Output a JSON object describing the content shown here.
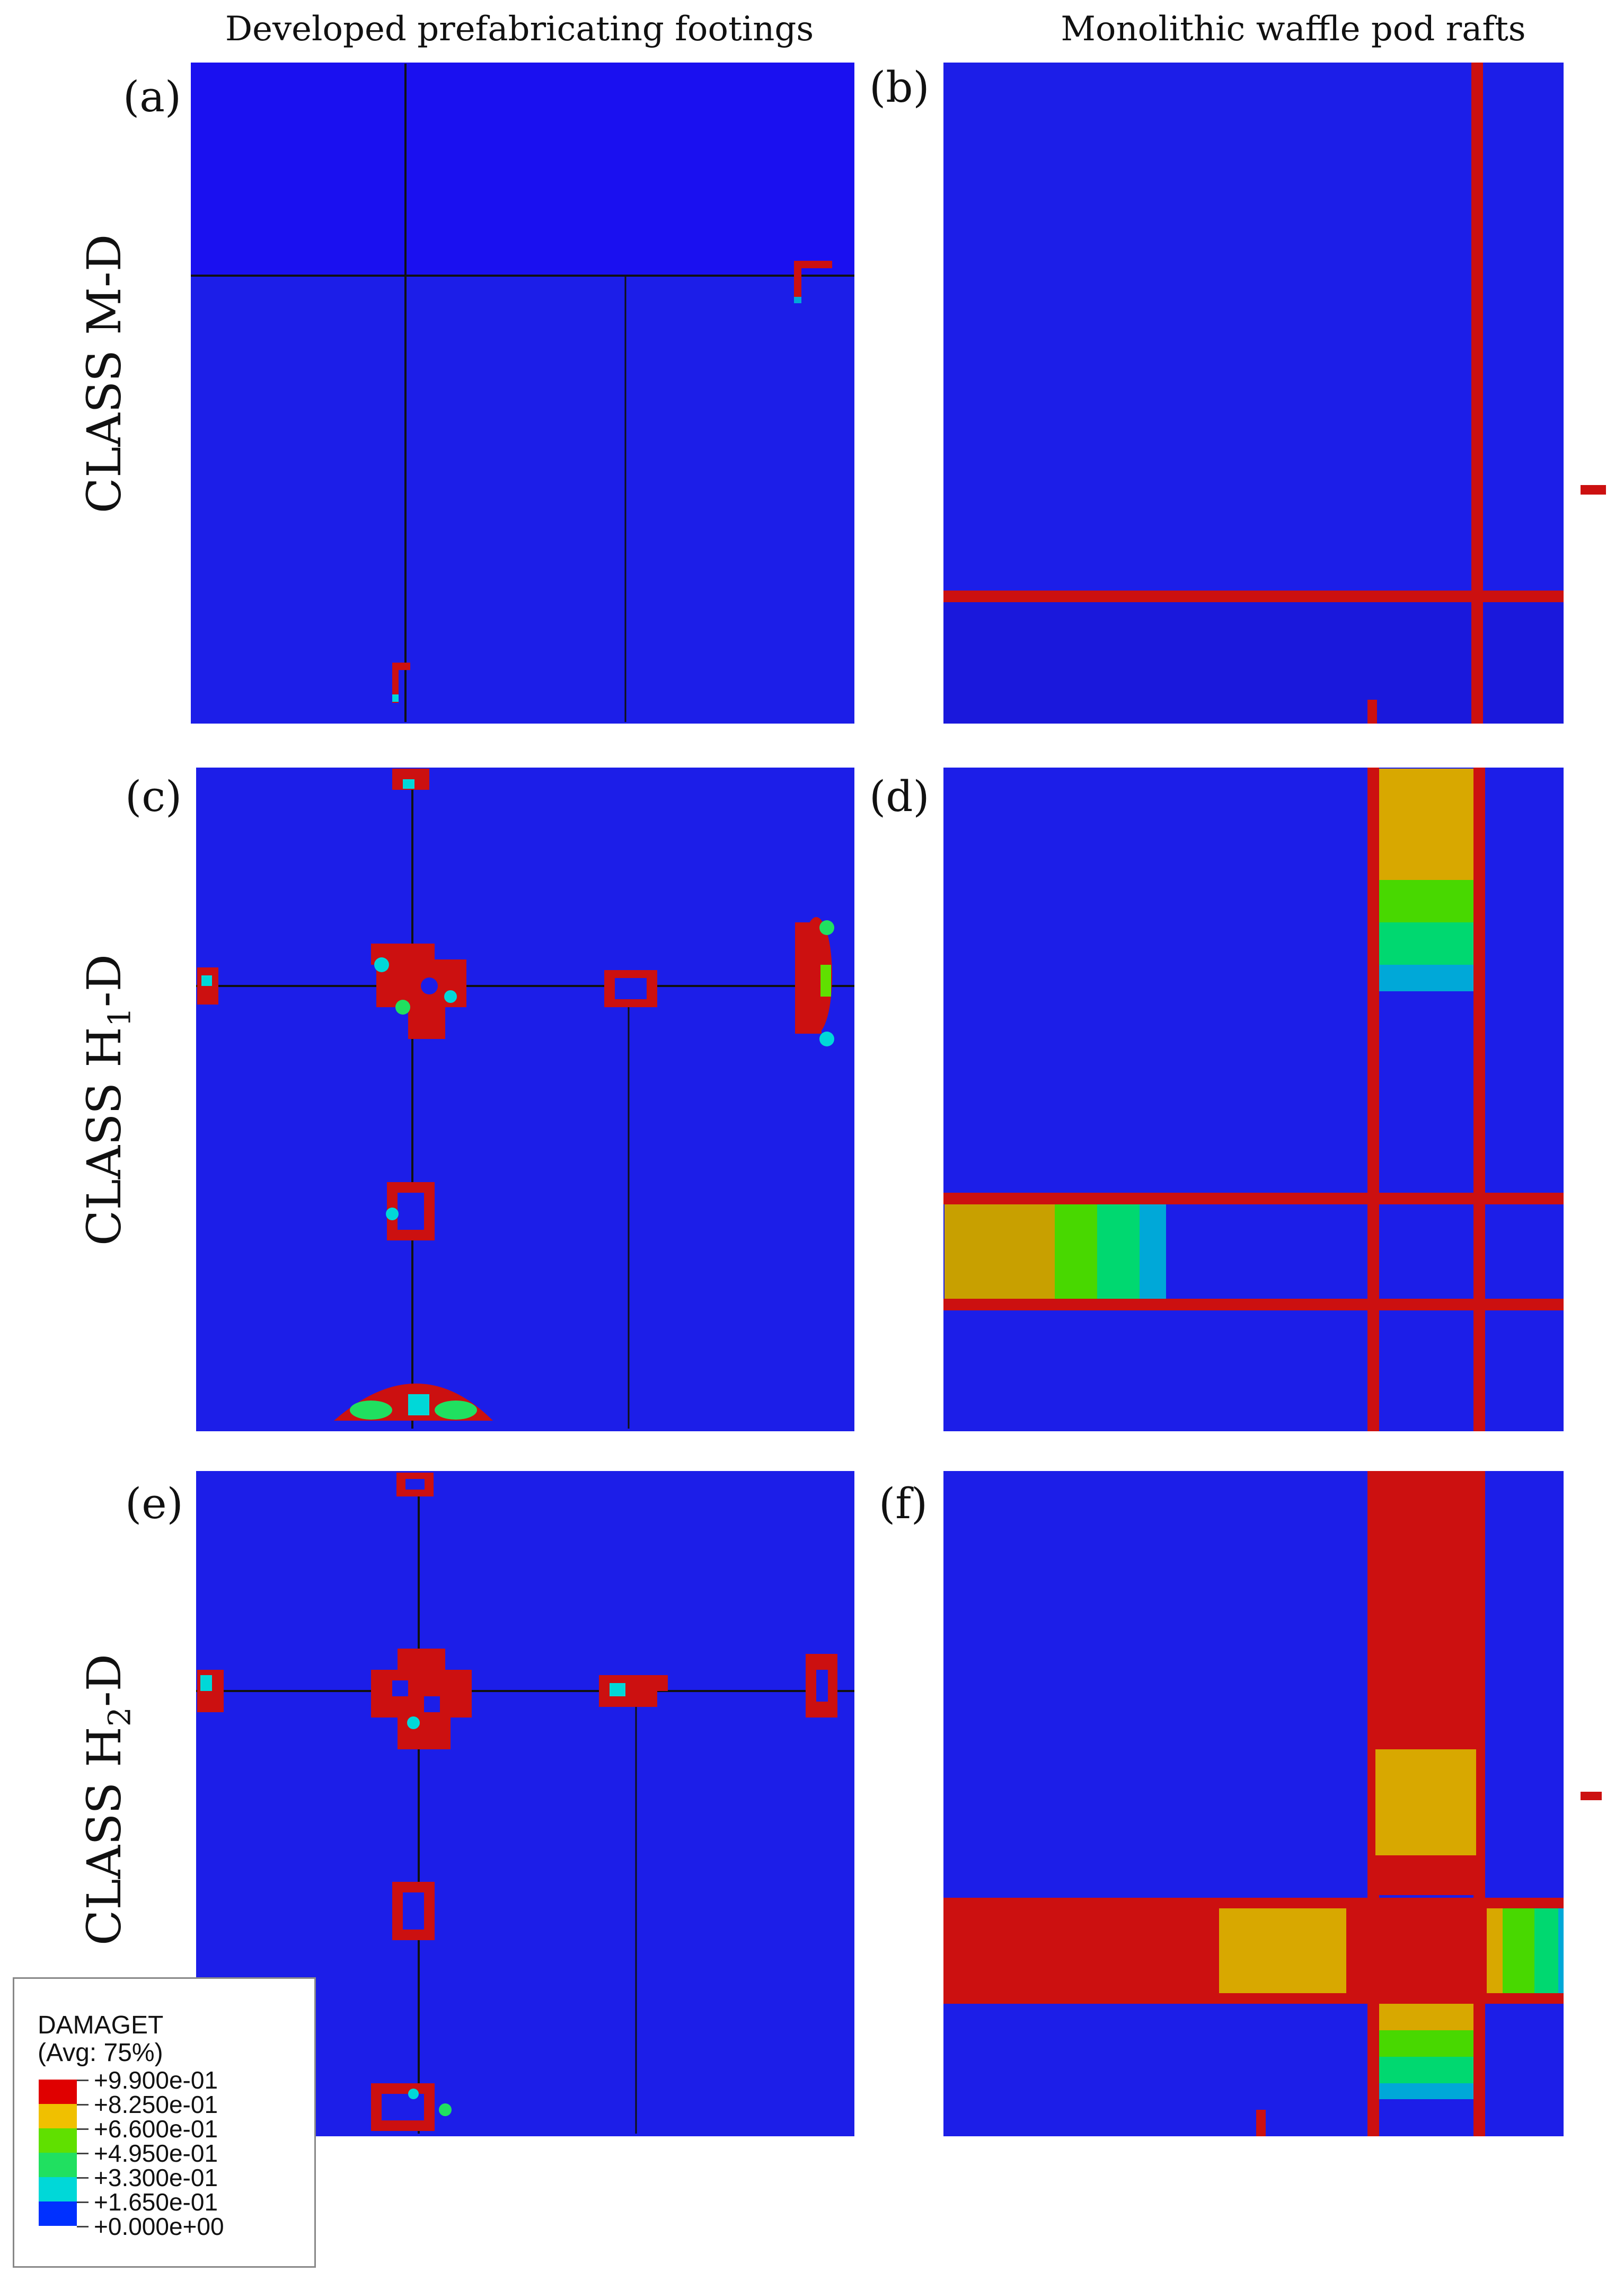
{
  "columns": {
    "left_title": "Developed prefabricating footings",
    "right_title": "Monolithic waffle pod rafts"
  },
  "rows": {
    "row1": {
      "class_prefix": "CLASS M-D",
      "sub": ""
    },
    "row2": {
      "class_prefix": "CLASS H",
      "sub": "1",
      "suffix": "-D"
    },
    "row3": {
      "class_prefix": "CLASS H",
      "sub": "2",
      "suffix": "-D"
    }
  },
  "panels": {
    "a": "(a)",
    "b": "(b)",
    "c": "(c)",
    "d": "(d)",
    "e": "(e)",
    "f": "(f)"
  },
  "legend": {
    "title": "DAMAGET",
    "subtitle": "(Avg: 75%)",
    "levels": [
      {
        "value": "+9.900e-01",
        "color": "#e00000"
      },
      {
        "value": "+8.250e-01",
        "color": "#f0c000"
      },
      {
        "value": "+6.600e-01",
        "color": "#60e000"
      },
      {
        "value": "+4.950e-01",
        "color": "#20e060"
      },
      {
        "value": "+3.300e-01",
        "color": "#00d8d8"
      },
      {
        "value": "+1.650e-01",
        "color": "#0030ff"
      },
      {
        "value": "+0.000e+00",
        "color": ""
      }
    ]
  },
  "colors": {
    "base_blue": "#1c1ee8",
    "damage_red": "#cc1010",
    "yellow": "#d8a800",
    "green": "#48d800",
    "teal": "#00d870",
    "cyan": "#00a8d8"
  }
}
